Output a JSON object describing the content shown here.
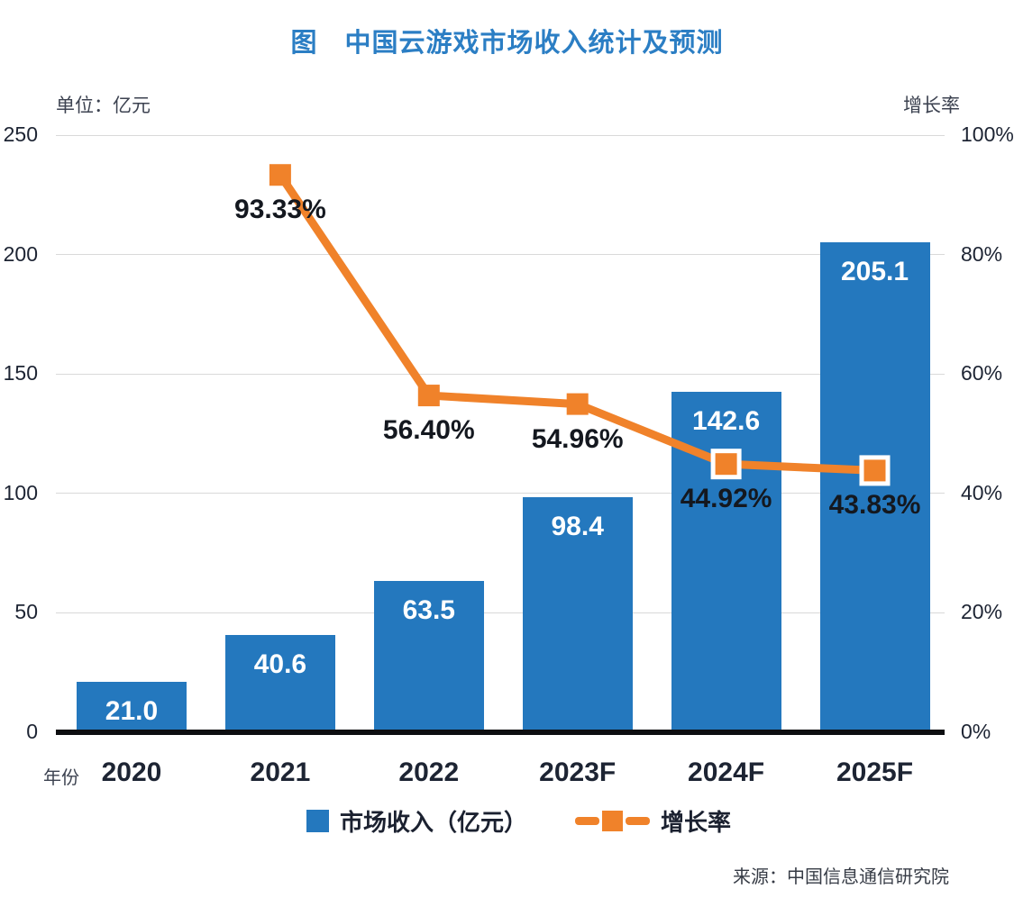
{
  "title": "图　中国云游戏市场收入统计及预测",
  "axis_unit_left": "单位：亿元",
  "axis_unit_right": "增长率",
  "x_axis_caption": "年份",
  "source": "来源：中国信息通信研究院",
  "colors": {
    "bar_blue": "#2478be",
    "line_orange": "#f0822a",
    "title_blue": "#2b7ec4",
    "gridline": "#d9d9d9",
    "axis_black": "#0d0e11",
    "label_dark": "#14181f"
  },
  "legend": [
    {
      "label": "市场收入（亿元）",
      "swatch": "bar-swatch",
      "color": "#2478be"
    },
    {
      "label": "增长率",
      "swatch": "line-marker-swatch",
      "color": "#f0822a"
    }
  ],
  "chart_data": {
    "type": "bar+line",
    "title": "图 中国云游戏市场收入统计及预测",
    "categories": [
      "2020",
      "2021",
      "2022",
      "2023F",
      "2024F",
      "2025F"
    ],
    "series": [
      {
        "name": "市场收入（亿元）",
        "type": "bar",
        "axis": "left",
        "values": [
          21.0,
          40.6,
          63.5,
          98.4,
          142.6,
          205.1
        ],
        "labels": [
          "21.0",
          "40.6",
          "63.5",
          "98.4",
          "142.6",
          "205.1"
        ],
        "color": "#2478be",
        "label_color": "#ffffff"
      },
      {
        "name": "增长率",
        "type": "line",
        "axis": "right",
        "values": [
          null,
          93.33,
          56.4,
          54.96,
          44.92,
          43.83
        ],
        "labels": [
          null,
          "93.33%",
          "56.40%",
          "54.96%",
          "44.92%",
          "43.83%"
        ],
        "color": "#f0822a",
        "marker": "square",
        "markers_outlined": [
          null,
          false,
          false,
          false,
          true,
          true
        ]
      }
    ],
    "y_axis_left": {
      "min": 0,
      "max": 250,
      "tick_step": 50,
      "tick_values": [
        0,
        50,
        100,
        150,
        200,
        250
      ],
      "tick_labels": [
        "0",
        "50",
        "100",
        "150",
        "200",
        "250"
      ],
      "unit": "亿元"
    },
    "y_axis_right": {
      "min": 0,
      "max": 100,
      "tick_step": 20,
      "tick_values": [
        0,
        20,
        40,
        60,
        80,
        100
      ],
      "tick_labels": [
        "0%",
        "20%",
        "40%",
        "60%",
        "80%",
        "100%"
      ],
      "unit": "%"
    },
    "grid": "horizontal",
    "legend_position": "bottom"
  }
}
